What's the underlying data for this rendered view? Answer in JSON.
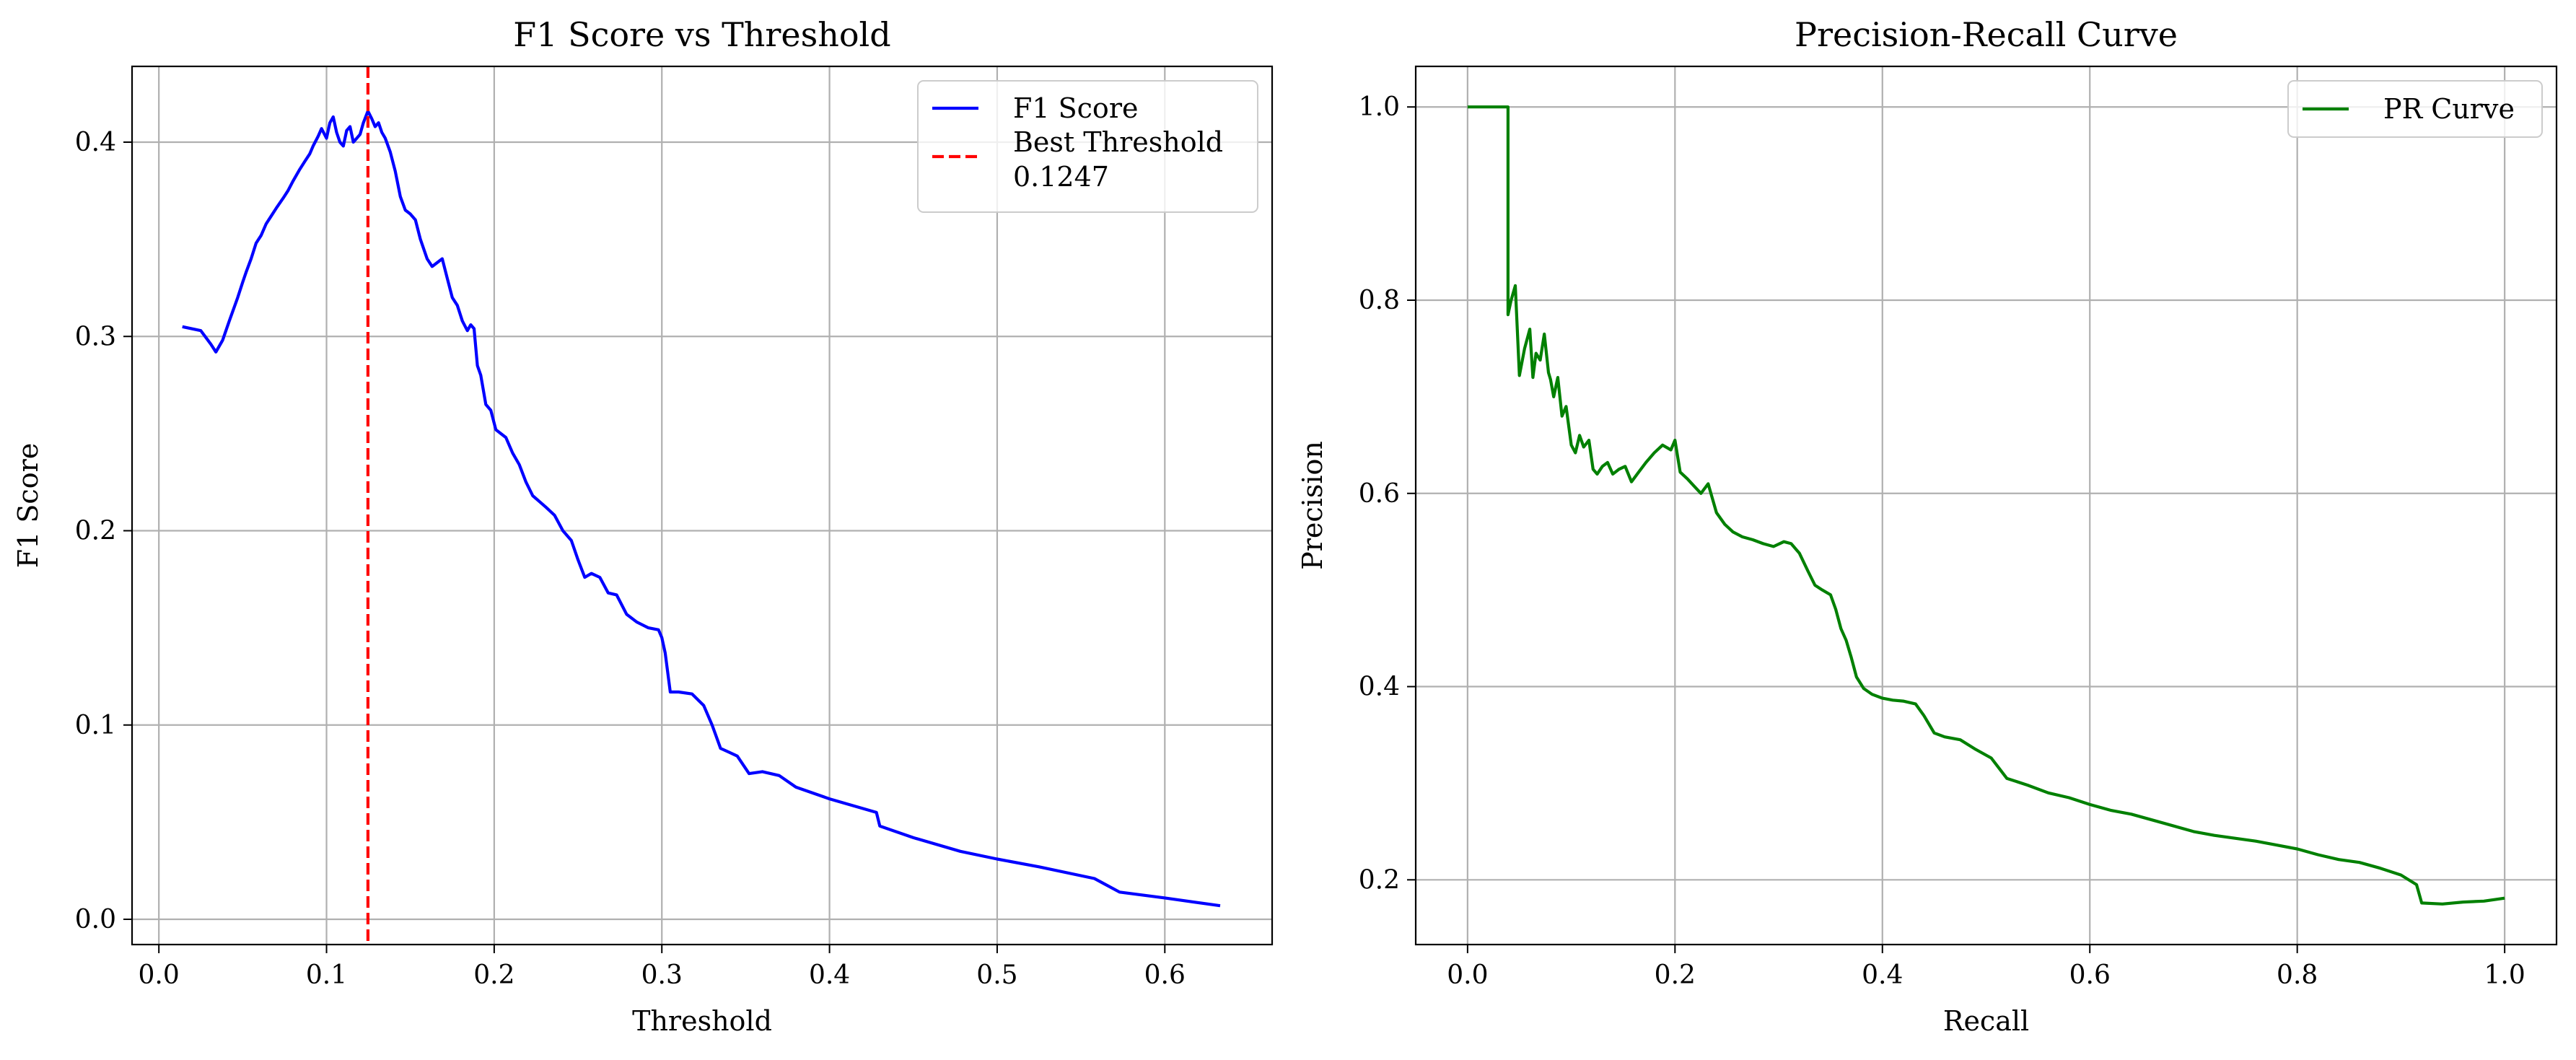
{
  "chart_data": [
    {
      "type": "line",
      "title": "F1 Score vs Threshold",
      "xlabel": "Threshold",
      "ylabel": "F1 Score",
      "xlim": [
        -0.016,
        0.664
      ],
      "ylim": [
        -0.013,
        0.439
      ],
      "xticks": [
        0.0,
        0.1,
        0.2,
        0.3,
        0.4,
        0.5,
        0.6
      ],
      "xtick_labels": [
        "0.0",
        "0.1",
        "0.2",
        "0.3",
        "0.4",
        "0.5",
        "0.6"
      ],
      "yticks": [
        0.0,
        0.1,
        0.2,
        0.3,
        0.4
      ],
      "ytick_labels": [
        "0.0",
        "0.1",
        "0.2",
        "0.3",
        "0.4"
      ],
      "grid": true,
      "legend_position": "top-right",
      "legend": [
        "F1 Score",
        "Best Threshold\n0.1247"
      ],
      "colors": {
        "f1": "#0000ff",
        "best": "#ff0000"
      },
      "series": [
        {
          "name": "F1 Score",
          "x": [
            0.014,
            0.025,
            0.031,
            0.034,
            0.038,
            0.042,
            0.047,
            0.05,
            0.052,
            0.055,
            0.058,
            0.061,
            0.064,
            0.067,
            0.07,
            0.074,
            0.077,
            0.08,
            0.084,
            0.087,
            0.09,
            0.092,
            0.095,
            0.097,
            0.1,
            0.102,
            0.104,
            0.106,
            0.108,
            0.11,
            0.112,
            0.114,
            0.116,
            0.118,
            0.12,
            0.122,
            0.1247,
            0.127,
            0.129,
            0.131,
            0.133,
            0.135,
            0.138,
            0.141,
            0.144,
            0.147,
            0.15,
            0.153,
            0.156,
            0.16,
            0.163,
            0.166,
            0.169,
            0.172,
            0.175,
            0.178,
            0.181,
            0.184,
            0.186,
            0.188,
            0.19,
            0.192,
            0.195,
            0.198,
            0.201,
            0.204,
            0.207,
            0.211,
            0.215,
            0.219,
            0.223,
            0.227,
            0.231,
            0.236,
            0.241,
            0.246,
            0.25,
            0.254,
            0.258,
            0.263,
            0.268,
            0.273,
            0.279,
            0.285,
            0.292,
            0.298,
            0.3,
            0.302,
            0.305,
            0.31,
            0.318,
            0.325,
            0.33,
            0.335,
            0.34,
            0.345,
            0.352,
            0.36,
            0.37,
            0.38,
            0.4,
            0.428,
            0.43,
            0.45,
            0.478,
            0.5,
            0.525,
            0.558,
            0.573,
            0.6,
            0.633
          ],
          "y": [
            0.305,
            0.303,
            0.296,
            0.292,
            0.298,
            0.308,
            0.32,
            0.328,
            0.333,
            0.34,
            0.348,
            0.352,
            0.358,
            0.362,
            0.366,
            0.371,
            0.375,
            0.38,
            0.386,
            0.39,
            0.394,
            0.398,
            0.403,
            0.407,
            0.402,
            0.41,
            0.413,
            0.405,
            0.4,
            0.398,
            0.406,
            0.408,
            0.4,
            0.402,
            0.404,
            0.41,
            0.416,
            0.412,
            0.408,
            0.41,
            0.405,
            0.402,
            0.395,
            0.385,
            0.372,
            0.365,
            0.363,
            0.36,
            0.35,
            0.34,
            0.336,
            0.338,
            0.34,
            0.33,
            0.32,
            0.316,
            0.308,
            0.303,
            0.306,
            0.304,
            0.285,
            0.28,
            0.265,
            0.262,
            0.252,
            0.25,
            0.248,
            0.24,
            0.234,
            0.225,
            0.218,
            0.215,
            0.212,
            0.208,
            0.2,
            0.195,
            0.185,
            0.176,
            0.178,
            0.176,
            0.168,
            0.167,
            0.157,
            0.153,
            0.15,
            0.149,
            0.145,
            0.137,
            0.117,
            0.117,
            0.116,
            0.11,
            0.1,
            0.088,
            0.086,
            0.084,
            0.075,
            0.076,
            0.074,
            0.068,
            0.062,
            0.055,
            0.048,
            0.042,
            0.035,
            0.031,
            0.027,
            0.021,
            0.014,
            0.011,
            0.007
          ]
        }
      ],
      "best_threshold": {
        "x": 0.1247,
        "label": "Best Threshold\n0.1247"
      }
    },
    {
      "type": "line",
      "title": "Precision-Recall Curve",
      "xlabel": "Recall",
      "ylabel": "Precision",
      "xlim": [
        -0.05,
        1.05
      ],
      "ylim": [
        0.133,
        1.042
      ],
      "xticks": [
        0.0,
        0.2,
        0.4,
        0.6,
        0.8,
        1.0
      ],
      "xtick_labels": [
        "0.0",
        "0.2",
        "0.4",
        "0.6",
        "0.8",
        "1.0"
      ],
      "yticks": [
        0.2,
        0.4,
        0.6,
        0.8,
        1.0
      ],
      "ytick_labels": [
        "0.2",
        "0.4",
        "0.6",
        "0.8",
        "1.0"
      ],
      "grid": true,
      "legend_position": "top-right",
      "legend": [
        "PR Curve"
      ],
      "colors": {
        "pr": "#008000"
      },
      "series": [
        {
          "name": "PR Curve",
          "x": [
            0.0,
            0.039,
            0.039,
            0.042,
            0.046,
            0.05,
            0.055,
            0.06,
            0.063,
            0.066,
            0.07,
            0.074,
            0.078,
            0.08,
            0.083,
            0.087,
            0.091,
            0.095,
            0.1,
            0.104,
            0.108,
            0.112,
            0.117,
            0.121,
            0.125,
            0.13,
            0.135,
            0.14,
            0.146,
            0.152,
            0.158,
            0.165,
            0.172,
            0.18,
            0.188,
            0.196,
            0.2,
            0.205,
            0.212,
            0.218,
            0.225,
            0.232,
            0.24,
            0.248,
            0.256,
            0.265,
            0.275,
            0.285,
            0.295,
            0.305,
            0.312,
            0.32,
            0.328,
            0.335,
            0.342,
            0.35,
            0.355,
            0.36,
            0.365,
            0.37,
            0.375,
            0.382,
            0.39,
            0.4,
            0.41,
            0.42,
            0.432,
            0.44,
            0.45,
            0.46,
            0.475,
            0.49,
            0.505,
            0.52,
            0.54,
            0.56,
            0.58,
            0.6,
            0.62,
            0.64,
            0.66,
            0.68,
            0.7,
            0.72,
            0.74,
            0.76,
            0.78,
            0.8,
            0.82,
            0.84,
            0.86,
            0.88,
            0.9,
            0.915,
            0.92,
            0.94,
            0.96,
            0.98,
            1.0
          ],
          "y": [
            1.0,
            1.0,
            0.785,
            0.8,
            0.815,
            0.722,
            0.75,
            0.77,
            0.72,
            0.745,
            0.738,
            0.765,
            0.725,
            0.718,
            0.7,
            0.72,
            0.68,
            0.69,
            0.65,
            0.642,
            0.66,
            0.648,
            0.655,
            0.625,
            0.62,
            0.628,
            0.632,
            0.62,
            0.625,
            0.628,
            0.612,
            0.622,
            0.632,
            0.642,
            0.65,
            0.645,
            0.655,
            0.622,
            0.615,
            0.608,
            0.6,
            0.61,
            0.58,
            0.568,
            0.56,
            0.555,
            0.552,
            0.548,
            0.545,
            0.55,
            0.548,
            0.538,
            0.52,
            0.505,
            0.5,
            0.495,
            0.48,
            0.46,
            0.448,
            0.43,
            0.41,
            0.398,
            0.392,
            0.388,
            0.386,
            0.385,
            0.382,
            0.37,
            0.352,
            0.348,
            0.345,
            0.335,
            0.326,
            0.305,
            0.298,
            0.29,
            0.285,
            0.278,
            0.272,
            0.268,
            0.262,
            0.256,
            0.25,
            0.246,
            0.243,
            0.24,
            0.236,
            0.232,
            0.226,
            0.221,
            0.218,
            0.212,
            0.205,
            0.195,
            0.176,
            0.175,
            0.177,
            0.178,
            0.181
          ]
        }
      ]
    }
  ]
}
